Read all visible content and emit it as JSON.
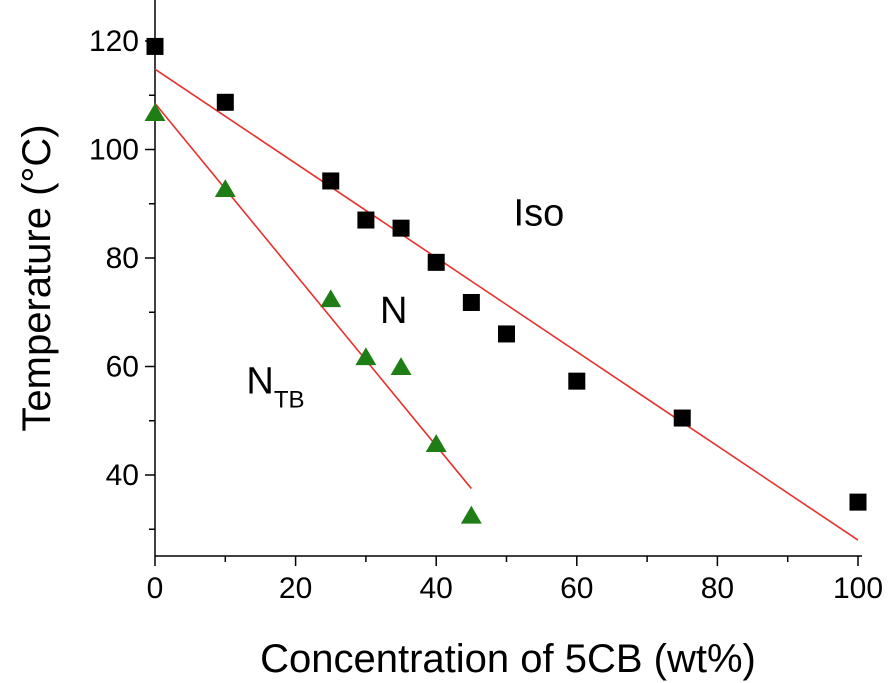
{
  "chart_data": {
    "type": "scatter",
    "xlabel": "Concentration of 5CB (wt%)",
    "ylabel": "Temperature (°C)",
    "xlim": [
      0,
      100
    ],
    "ylim": [
      25,
      125
    ],
    "xticks": [
      "0",
      "20",
      "40",
      "60",
      "80",
      "100"
    ],
    "yticks": [
      "40",
      "60",
      "80",
      "100",
      "120"
    ],
    "grid": false,
    "series": [
      {
        "marker": "square",
        "color": "#000000",
        "x": [
          0,
          10,
          25,
          30,
          35,
          40,
          45,
          50,
          60,
          75,
          100
        ],
        "y": [
          119,
          108.7,
          94.2,
          87,
          85.5,
          79.2,
          71.8,
          66,
          57.3,
          50.5,
          35
        ]
      },
      {
        "marker": "triangle",
        "color": "#1e7d14",
        "x": [
          0,
          10,
          25,
          30,
          35,
          40,
          45
        ],
        "y": [
          106.5,
          92.5,
          72.2,
          61.5,
          59.7,
          45.5,
          32.3
        ]
      }
    ],
    "fit_lines": [
      {
        "color": "#e8302c",
        "x": [
          0,
          100
        ],
        "y": [
          114.8,
          28
        ]
      },
      {
        "color": "#e8302c",
        "x": [
          0,
          45
        ],
        "y": [
          108.5,
          37.5
        ]
      }
    ],
    "annotations": [
      {
        "text": "Iso",
        "x": 51,
        "y": 86
      },
      {
        "text": "N",
        "x": 32,
        "y": 68
      },
      {
        "text": "N",
        "sub": "TB",
        "x": 13,
        "y": 55
      }
    ]
  }
}
